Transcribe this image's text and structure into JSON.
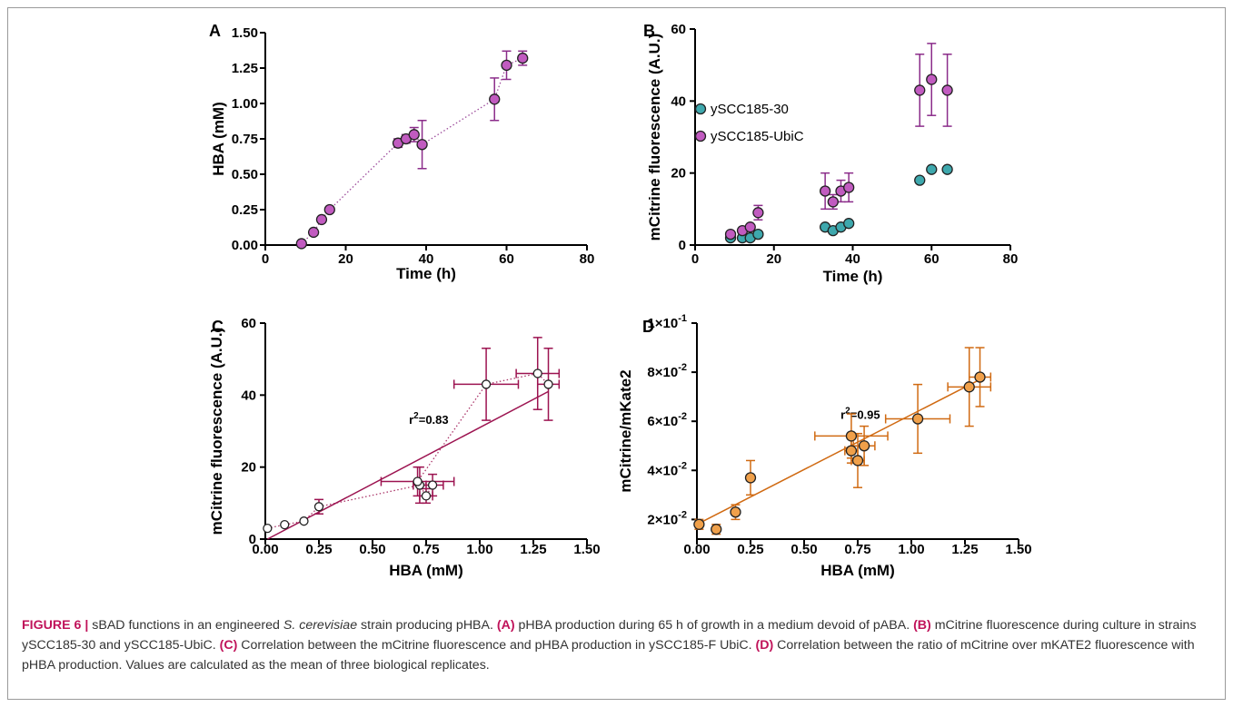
{
  "caption": {
    "label": "FIGURE 6 |",
    "segments": [
      {
        "text": " sBAD functions in an engineered ",
        "style": "normal"
      },
      {
        "text": "S. cerevisiae",
        "style": "italic"
      },
      {
        "text": " strain producing pHBA. ",
        "style": "normal"
      },
      {
        "text": "(A)",
        "style": "bold"
      },
      {
        "text": " pHBA production during 65 h of growth in a medium devoid of pABA. ",
        "style": "normal"
      },
      {
        "text": "(B)",
        "style": "bold"
      },
      {
        "text": " mCitrine fluorescence during culture in strains ySCC185-30 and ySCC185-UbiC. ",
        "style": "normal"
      },
      {
        "text": "(C)",
        "style": "bold"
      },
      {
        "text": " Correlation between the mCitrine fluorescence and pHBA production in ySCC185-F UbiC. ",
        "style": "normal"
      },
      {
        "text": "(D)",
        "style": "bold"
      },
      {
        "text": " Correlation between the ratio of mCitrine over mKATE2 fluorescence with pHBA production. Values are calculated as the mean of three biological replicates.",
        "style": "normal"
      }
    ]
  },
  "colors": {
    "purple": "#8b2c8a",
    "purple_fill": "#c15bc0",
    "teal": "#2a6e73",
    "teal_fill": "#3ea8ad",
    "crimson": "#9c1350",
    "orange": "#d06a12",
    "orange_fill": "#f0a04a"
  },
  "chart_data": [
    {
      "panel": "A",
      "type": "scatter",
      "xlabel": "Time (h)",
      "ylabel": "HBA (mM)",
      "xlim": [
        0,
        80
      ],
      "ylim": [
        0,
        1.5
      ],
      "xticks": [
        "0",
        "20",
        "40",
        "60",
        "80"
      ],
      "yticks": [
        "0.00",
        "0.25",
        "0.50",
        "0.75",
        "1.00",
        "1.25",
        "1.50"
      ],
      "series": [
        {
          "connect": "dotted",
          "points": [
            {
              "x": 9,
              "y": 0.01,
              "err": 0
            },
            {
              "x": 12,
              "y": 0.09,
              "err": 0
            },
            {
              "x": 14,
              "y": 0.18,
              "err": 0
            },
            {
              "x": 16,
              "y": 0.25,
              "err": 0
            },
            {
              "x": 33,
              "y": 0.72,
              "err": 0.03
            },
            {
              "x": 35,
              "y": 0.75,
              "err": 0.03
            },
            {
              "x": 37,
              "y": 0.78,
              "err": 0.05
            },
            {
              "x": 39,
              "y": 0.71,
              "err": 0.17
            },
            {
              "x": 57,
              "y": 1.03,
              "err": 0.15
            },
            {
              "x": 60,
              "y": 1.27,
              "err": 0.1
            },
            {
              "x": 64,
              "y": 1.32,
              "err": 0.05
            }
          ]
        }
      ]
    },
    {
      "panel": "B",
      "type": "scatter",
      "xlabel": "Time (h)",
      "ylabel": "mCitrine fluorescence (A.U.)",
      "xlim": [
        0,
        80
      ],
      "ylim": [
        0,
        60
      ],
      "xticks": [
        "0",
        "20",
        "40",
        "60",
        "80"
      ],
      "yticks": [
        "0",
        "20",
        "40",
        "60"
      ],
      "legend": "left-middle",
      "series": [
        {
          "name": "ySCC185-30",
          "points": [
            {
              "x": 9,
              "y": 2,
              "err": 0
            },
            {
              "x": 12,
              "y": 2,
              "err": 0
            },
            {
              "x": 14,
              "y": 2,
              "err": 0
            },
            {
              "x": 16,
              "y": 3,
              "err": 0
            },
            {
              "x": 33,
              "y": 5,
              "err": 0
            },
            {
              "x": 35,
              "y": 4,
              "err": 0
            },
            {
              "x": 37,
              "y": 5,
              "err": 0
            },
            {
              "x": 39,
              "y": 6,
              "err": 0
            },
            {
              "x": 57,
              "y": 18,
              "err": 0
            },
            {
              "x": 60,
              "y": 21,
              "err": 0
            },
            {
              "x": 64,
              "y": 21,
              "err": 0
            }
          ]
        },
        {
          "name": "ySCC185-UbiC",
          "points": [
            {
              "x": 9,
              "y": 3,
              "err": 0
            },
            {
              "x": 12,
              "y": 4,
              "err": 0
            },
            {
              "x": 14,
              "y": 5,
              "err": 0
            },
            {
              "x": 16,
              "y": 9,
              "err": 2
            },
            {
              "x": 33,
              "y": 15,
              "err": 5
            },
            {
              "x": 35,
              "y": 12,
              "err": 2
            },
            {
              "x": 37,
              "y": 15,
              "err": 3
            },
            {
              "x": 39,
              "y": 16,
              "err": 4
            },
            {
              "x": 57,
              "y": 43,
              "err": 10
            },
            {
              "x": 60,
              "y": 46,
              "err": 10
            },
            {
              "x": 64,
              "y": 43,
              "err": 10
            }
          ]
        }
      ]
    },
    {
      "panel": "C",
      "type": "scatter",
      "xlabel": "HBA (mM)",
      "ylabel": "mCitrine fluorescence (A.U.)",
      "xlim": [
        0,
        1.5
      ],
      "ylim": [
        0,
        60
      ],
      "xticks": [
        "0.00",
        "0.25",
        "0.50",
        "0.75",
        "1.00",
        "1.25",
        "1.50"
      ],
      "yticks": [
        "0",
        "20",
        "40",
        "60"
      ],
      "annotation": {
        "text": "r",
        "sup": "2",
        "tail": "=0.83",
        "x": 0.67,
        "y": 32
      },
      "fit": {
        "x0": 0.01,
        "y0": 0,
        "x1": 1.32,
        "y1": 41
      },
      "series": [
        {
          "connect": "dotted",
          "points": [
            {
              "x": 0.01,
              "y": 3,
              "xerr": 0,
              "yerr": 0
            },
            {
              "x": 0.09,
              "y": 4,
              "xerr": 0,
              "yerr": 0
            },
            {
              "x": 0.18,
              "y": 5,
              "xerr": 0,
              "yerr": 0
            },
            {
              "x": 0.25,
              "y": 9,
              "xerr": 0,
              "yerr": 2
            },
            {
              "x": 0.72,
              "y": 15,
              "xerr": 0.03,
              "yerr": 5
            },
            {
              "x": 0.75,
              "y": 12,
              "xerr": 0.03,
              "yerr": 2
            },
            {
              "x": 0.78,
              "y": 15,
              "xerr": 0.05,
              "yerr": 3
            },
            {
              "x": 0.71,
              "y": 16,
              "xerr": 0.17,
              "yerr": 4
            },
            {
              "x": 1.03,
              "y": 43,
              "xerr": 0.15,
              "yerr": 10
            },
            {
              "x": 1.27,
              "y": 46,
              "xerr": 0.1,
              "yerr": 10
            },
            {
              "x": 1.32,
              "y": 43,
              "xerr": 0.05,
              "yerr": 10
            }
          ]
        }
      ]
    },
    {
      "panel": "D",
      "type": "scatter",
      "xlabel": "HBA (mM)",
      "ylabel": "mCitrine/mKate2",
      "xlim": [
        0,
        1.5
      ],
      "ylim": [
        0.012,
        0.1
      ],
      "xticks": [
        "0.00",
        "0.25",
        "0.50",
        "0.75",
        "1.00",
        "1.25",
        "1.50"
      ],
      "yticks": [
        {
          "v": 0.02,
          "m": "2",
          "e": "-2"
        },
        {
          "v": 0.04,
          "m": "4",
          "e": "-2"
        },
        {
          "v": 0.06,
          "m": "6",
          "e": "-2"
        },
        {
          "v": 0.08,
          "m": "8",
          "e": "-2"
        },
        {
          "v": 0.1,
          "m": "1",
          "e": "-1"
        }
      ],
      "annotation": {
        "text": "r",
        "sup": "2",
        "tail": "=0.95",
        "x": 0.67,
        "y": 0.061
      },
      "fit": {
        "x0": 0.0,
        "y0": 0.018,
        "x1": 1.32,
        "y1": 0.077
      },
      "series": [
        {
          "points": [
            {
              "x": 0.01,
              "y": 0.018,
              "xerr": 0,
              "yerr": 0.002
            },
            {
              "x": 0.09,
              "y": 0.016,
              "xerr": 0,
              "yerr": 0.002
            },
            {
              "x": 0.18,
              "y": 0.023,
              "xerr": 0,
              "yerr": 0.003
            },
            {
              "x": 0.25,
              "y": 0.037,
              "xerr": 0,
              "yerr": 0.007
            },
            {
              "x": 0.72,
              "y": 0.054,
              "xerr": 0.17,
              "yerr": 0.009
            },
            {
              "x": 0.72,
              "y": 0.048,
              "xerr": 0.03,
              "yerr": 0.005
            },
            {
              "x": 0.75,
              "y": 0.044,
              "xerr": 0.03,
              "yerr": 0.011
            },
            {
              "x": 0.78,
              "y": 0.05,
              "xerr": 0.05,
              "yerr": 0.008
            },
            {
              "x": 1.03,
              "y": 0.061,
              "xerr": 0.15,
              "yerr": 0.014
            },
            {
              "x": 1.27,
              "y": 0.074,
              "xerr": 0.1,
              "yerr": 0.016
            },
            {
              "x": 1.32,
              "y": 0.078,
              "xerr": 0.05,
              "yerr": 0.012
            }
          ]
        }
      ]
    }
  ]
}
